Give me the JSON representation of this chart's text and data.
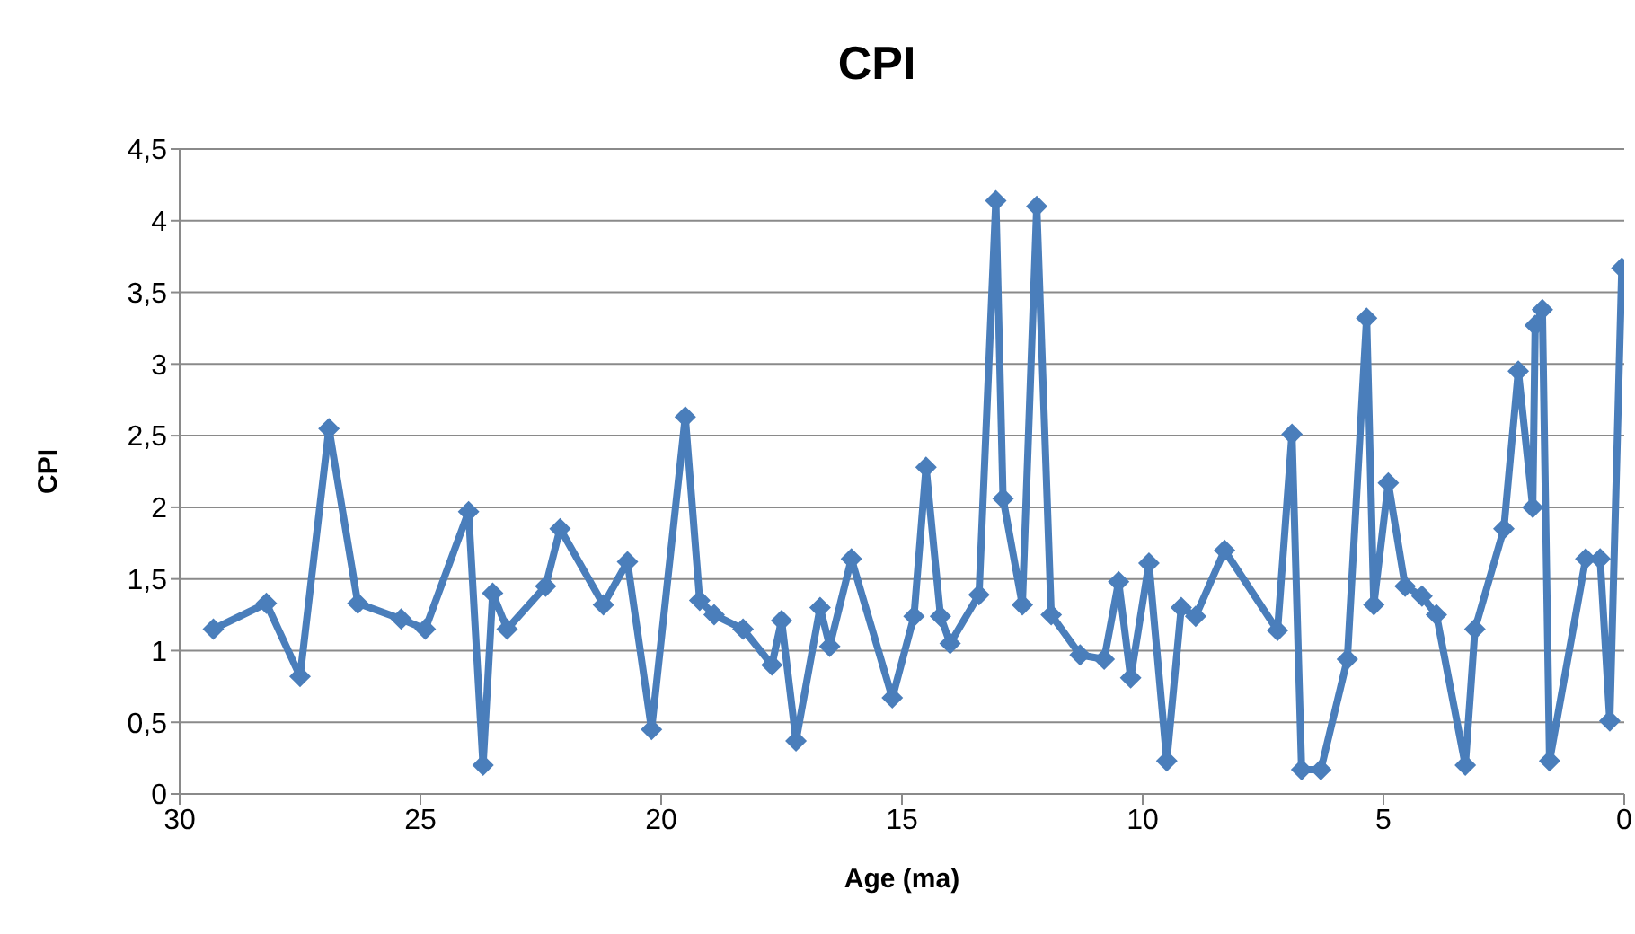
{
  "chart_data": {
    "type": "line",
    "title": "CPI",
    "xlabel": "Age (ma)",
    "ylabel": "CPI",
    "x": [
      29.3,
      28.2,
      27.5,
      26.9,
      26.3,
      25.4,
      24.9,
      24.0,
      23.7,
      23.5,
      23.2,
      22.4,
      22.1,
      21.2,
      20.7,
      20.2,
      19.5,
      19.2,
      18.9,
      18.3,
      17.7,
      17.5,
      17.2,
      16.7,
      16.5,
      16.05,
      15.2,
      14.75,
      14.5,
      14.2,
      14.0,
      13.4,
      13.05,
      12.9,
      12.5,
      12.2,
      11.9,
      11.3,
      10.8,
      10.5,
      10.25,
      9.87,
      9.5,
      9.2,
      8.9,
      8.3,
      7.2,
      6.9,
      6.7,
      6.3,
      5.75,
      5.35,
      5.2,
      4.9,
      4.55,
      4.2,
      3.9,
      3.3,
      3.1,
      2.5,
      2.2,
      1.9,
      1.85,
      1.7,
      1.55,
      0.8,
      0.5,
      0.3,
      0.05
    ],
    "series": [
      {
        "color": "#4a7ebb",
        "values": [
          1.15,
          1.33,
          0.82,
          2.55,
          1.33,
          1.22,
          1.15,
          1.97,
          0.2,
          1.4,
          1.15,
          1.45,
          1.85,
          1.32,
          1.62,
          0.45,
          2.63,
          1.35,
          1.25,
          1.15,
          0.9,
          1.21,
          0.37,
          1.3,
          1.03,
          1.64,
          0.67,
          1.24,
          2.28,
          1.24,
          1.05,
          1.39,
          4.14,
          2.06,
          1.32,
          4.1,
          1.25,
          0.97,
          0.94,
          1.48,
          0.81,
          1.61,
          0.23,
          1.3,
          1.24,
          1.7,
          1.14,
          2.51,
          0.17,
          0.17,
          0.94,
          3.32,
          1.32,
          2.17,
          1.45,
          1.38,
          1.25,
          0.2,
          1.15,
          1.85,
          2.95,
          2.0,
          3.27,
          3.38,
          0.23,
          1.64,
          1.64,
          0.51,
          3.67
        ]
      }
    ],
    "xlim": [
      30,
      0
    ],
    "xticks": [
      30,
      25,
      20,
      15,
      10,
      5,
      0
    ],
    "ylim": [
      0,
      4.5
    ],
    "yticks": [
      0,
      {
        "value": 0.5,
        "label": "0,5"
      },
      1,
      {
        "value": 1.5,
        "label": "1,5"
      },
      2,
      {
        "value": 2.5,
        "label": "2,5"
      },
      3,
      {
        "value": 3.5,
        "label": "3,5"
      },
      4,
      {
        "value": 4.5,
        "label": "4,5"
      }
    ],
    "grid": "y",
    "marker": "diamond",
    "line_style": "solid"
  }
}
